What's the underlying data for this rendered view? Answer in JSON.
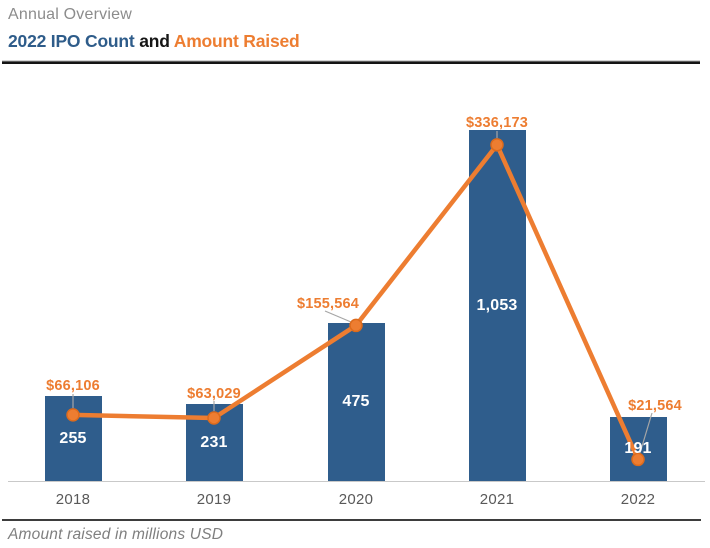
{
  "header": {
    "eyebrow": "Annual Overview",
    "title_blue": "2022 IPO Count",
    "title_and": "and",
    "title_orange": "Amount Raised"
  },
  "footer": {
    "note": "Amount raised in millions USD"
  },
  "colors": {
    "bar_blue": "#2f5d8c",
    "line_orange": "#ed7d31",
    "marker_rim_orange": "#dd6b1c",
    "leader_gray": "#a6a6a6",
    "title_blue": "#2e5c8a",
    "title_black": "#161616",
    "axis_gray": "#c9c9c9",
    "year_label_gray": "#595959",
    "note_gray": "#7f7f7f"
  },
  "chart_data": {
    "type": "bar",
    "subtype": "combo-bar-line",
    "title": "2022 IPO Count and Amount Raised",
    "subtitle": "Annual Overview",
    "footnote": "Amount raised in millions USD",
    "categories": [
      "2018",
      "2019",
      "2020",
      "2021",
      "2022"
    ],
    "series": [
      {
        "name": "IPO Count",
        "type": "bar",
        "values": [
          255,
          231,
          475,
          1053,
          191
        ],
        "labels": [
          "255",
          "231",
          "475",
          "1,053",
          "191"
        ]
      },
      {
        "name": "Amount Raised",
        "type": "line",
        "values": [
          66106,
          63029,
          155564,
          336173,
          21564
        ],
        "labels": [
          "$66,106",
          "$63,029",
          "$155,564",
          "$336,173",
          "$21,564"
        ]
      }
    ],
    "bar_axis_range": [
      0,
      1203
    ],
    "line_axis_range": [
      0,
      401000
    ],
    "grid": false,
    "legend": false,
    "value_labels_visible": true
  }
}
